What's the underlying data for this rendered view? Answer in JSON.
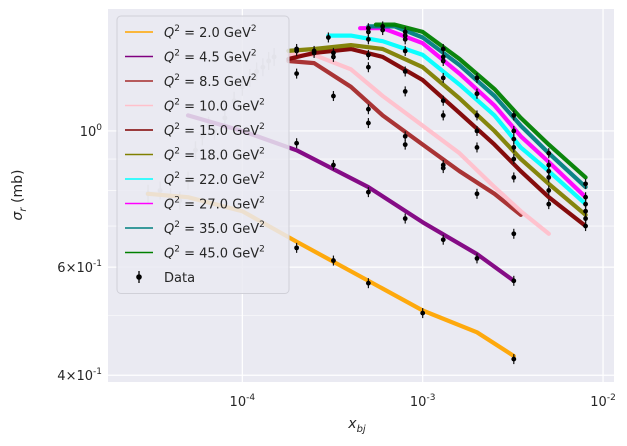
{
  "chart_data": {
    "type": "line",
    "xlabel": "x_bj",
    "ylabel": "σ_r (mb)",
    "xscale": "log",
    "yscale": "log",
    "xlim": [
      1.8e-05,
      0.0115
    ],
    "ylim": [
      0.39,
      1.58
    ],
    "grid": true,
    "legend": "upper-left",
    "x_ticks": [
      {
        "value": 0.0001,
        "label": "10^-4"
      },
      {
        "value": 0.001,
        "label": "10^-3"
      },
      {
        "value": 0.01,
        "label": "10^-2"
      }
    ],
    "y_ticks": [
      {
        "value": 0.4,
        "label": "4×10^-1"
      },
      {
        "value": 0.6,
        "label": "6×10^-1"
      },
      {
        "value": 1.0,
        "label": "10^0"
      }
    ],
    "series": [
      {
        "name": "Q² = 2.0 GeV²",
        "color": "#ffa500",
        "x": [
          3e-05,
          5e-05,
          0.0001,
          0.0002,
          0.0005,
          0.001,
          0.002,
          0.0032
        ],
        "y": [
          0.79,
          0.78,
          0.74,
          0.66,
          0.57,
          0.51,
          0.47,
          0.43
        ],
        "x_points": [
          0.0002,
          0.00032,
          0.0005,
          0.001,
          0.0032
        ],
        "y_points": [
          0.645,
          0.615,
          0.565,
          0.505,
          0.425
        ]
      },
      {
        "name": "Q² = 4.5 GeV²",
        "color": "#800080",
        "x": [
          5e-05,
          0.0001,
          0.0002,
          0.0005,
          0.001,
          0.002,
          0.0032
        ],
        "y": [
          1.06,
          1.0,
          0.93,
          0.81,
          0.71,
          0.63,
          0.57
        ],
        "x_points": [
          0.0002,
          0.00032,
          0.0005,
          0.0008,
          0.0013,
          0.002,
          0.0032
        ],
        "y_points": [
          0.955,
          0.88,
          0.795,
          0.72,
          0.665,
          0.62,
          0.57
        ]
      },
      {
        "name": "Q² = 8.5 GeV²",
        "color": "#a52a2a",
        "x": [
          0.00018,
          0.00025,
          0.0004,
          0.0006,
          0.001,
          0.0016,
          0.0025,
          0.0035
        ],
        "y": [
          1.3,
          1.29,
          1.18,
          1.06,
          0.95,
          0.86,
          0.79,
          0.73
        ],
        "x_points": [
          0.0002,
          0.00032,
          0.0005,
          0.0008,
          0.0013,
          0.002,
          0.0032
        ],
        "y_points": [
          1.24,
          1.14,
          1.03,
          0.95,
          0.87,
          0.79,
          0.68
        ]
      },
      {
        "name": "Q² = 10.0 GeV²",
        "color": "#ffc0cb",
        "x": [
          0.00018,
          0.00025,
          0.0004,
          0.0006,
          0.001,
          0.0016,
          0.0025,
          0.0035,
          0.005
        ],
        "y": [
          1.33,
          1.33,
          1.26,
          1.14,
          1.02,
          0.92,
          0.81,
          0.74,
          0.68
        ],
        "x_points": [
          0.0005,
          0.0008,
          0.0013
        ],
        "y_points": [
          1.085,
          0.98,
          0.88
        ]
      },
      {
        "name": "Q² = 15.0 GeV²",
        "color": "#800000",
        "x": [
          0.00018,
          0.00025,
          0.0004,
          0.0006,
          0.001,
          0.0016,
          0.0025,
          0.0035,
          0.005,
          0.008
        ],
        "y": [
          1.31,
          1.34,
          1.36,
          1.32,
          1.21,
          1.07,
          0.95,
          0.86,
          0.78,
          0.7
        ],
        "x_points": [
          0.0002,
          0.00025,
          0.00032,
          0.0005,
          0.0008,
          0.0013,
          0.002,
          0.0032,
          0.005,
          0.008
        ],
        "y_points": [
          1.35,
          1.34,
          1.32,
          1.27,
          1.16,
          1.06,
          0.94,
          0.84,
          0.76,
          0.7
        ]
      },
      {
        "name": "Q² = 18.0 GeV²",
        "color": "#808000",
        "x": [
          0.00018,
          0.00025,
          0.0004,
          0.0006,
          0.001,
          0.0016,
          0.0025,
          0.0035,
          0.005,
          0.008
        ],
        "y": [
          1.35,
          1.36,
          1.38,
          1.36,
          1.27,
          1.13,
          1.0,
          0.9,
          0.82,
          0.73
        ],
        "x_points": [
          0.0002,
          0.00025,
          0.00032,
          0.0005,
          0.0008,
          0.0013,
          0.002,
          0.0032,
          0.005,
          0.008
        ],
        "y_points": [
          1.36,
          1.35,
          1.34,
          1.33,
          1.25,
          1.12,
          1.0,
          0.9,
          0.8,
          0.72
        ]
      },
      {
        "name": "Q² = 22.0 GeV²",
        "color": "#00ffff",
        "x": [
          0.0003,
          0.0004,
          0.0006,
          0.001,
          0.0016,
          0.0025,
          0.0035,
          0.005,
          0.008
        ],
        "y": [
          1.43,
          1.43,
          1.4,
          1.33,
          1.19,
          1.06,
          0.94,
          0.86,
          0.76
        ],
        "x_points": [
          0.0003,
          0.0005,
          0.0008,
          0.0013,
          0.002,
          0.0032,
          0.005,
          0.008
        ],
        "y_points": [
          1.42,
          1.41,
          1.35,
          1.22,
          1.06,
          0.94,
          0.84,
          0.74
        ]
      },
      {
        "name": "Q² = 27.0 GeV²",
        "color": "#ff00ff",
        "x": [
          0.00045,
          0.0006,
          0.001,
          0.0016,
          0.0025,
          0.0035,
          0.005,
          0.008
        ],
        "y": [
          1.47,
          1.47,
          1.39,
          1.24,
          1.1,
          0.98,
          0.89,
          0.78
        ],
        "x_points": [
          0.0005,
          0.0008,
          0.0013,
          0.002,
          0.0032,
          0.005,
          0.008
        ],
        "y_points": [
          1.45,
          1.41,
          1.3,
          1.15,
          0.97,
          0.86,
          0.76
        ]
      },
      {
        "name": "Q² = 35.0 GeV²",
        "color": "#008080",
        "x": [
          0.0005,
          0.0007,
          0.001,
          0.0016,
          0.0025,
          0.0035,
          0.005,
          0.008
        ],
        "y": [
          1.48,
          1.48,
          1.42,
          1.28,
          1.14,
          1.02,
          0.92,
          0.81
        ],
        "x_points": [
          0.0005,
          0.0006,
          0.0008,
          0.0013,
          0.002,
          0.0032,
          0.005,
          0.008
        ],
        "y_points": [
          1.47,
          1.46,
          1.43,
          1.32,
          1.15,
          1.0,
          0.88,
          0.78
        ]
      },
      {
        "name": "Q² = 45.0 GeV²",
        "color": "#008000",
        "x": [
          0.00055,
          0.0007,
          0.001,
          0.0016,
          0.0025,
          0.0035,
          0.005,
          0.008
        ],
        "y": [
          1.49,
          1.49,
          1.45,
          1.31,
          1.17,
          1.05,
          0.95,
          0.84
        ],
        "x_points": [
          0.0006,
          0.0008,
          0.0013,
          0.002,
          0.0032,
          0.005,
          0.008
        ],
        "y_points": [
          1.48,
          1.45,
          1.36,
          1.22,
          1.06,
          0.92,
          0.82
        ]
      },
      {
        "name": "Data",
        "color": "#000000"
      }
    ],
    "faded_points": {
      "x": [
        3e-05,
        3.5e-05,
        4e-05,
        4.5e-05,
        5e-05,
        5.5e-05,
        6e-05,
        6.5e-05,
        7e-05,
        8e-05,
        9e-05,
        0.0001,
        0.00011,
        0.00012,
        0.00013,
        0.00014,
        0.00015
      ],
      "y": [
        0.79,
        0.8,
        0.78,
        0.77,
        0.83,
        0.93,
        0.98,
        1.02,
        1.0,
        1.05,
        1.12,
        1.18,
        1.22,
        1.25,
        1.27,
        1.3,
        1.32
      ]
    }
  }
}
